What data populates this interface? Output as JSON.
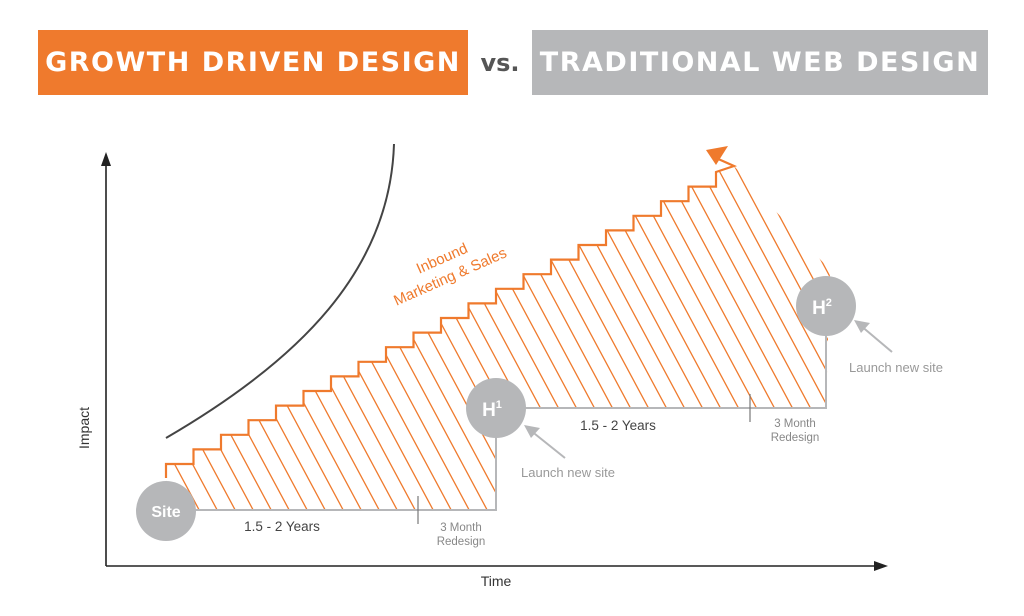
{
  "header": {
    "left_title": "GROWTH DRIVEN DESIGN",
    "vs": "vs.",
    "right_title": "TRADITIONAL WEB DESIGN"
  },
  "axes": {
    "y_label": "Impact",
    "x_label": "Time"
  },
  "curve_label": {
    "line1": "Inbound",
    "line2": "Marketing & Sales"
  },
  "nodes": {
    "site": "Site",
    "h1": "H",
    "h1_sup": "1",
    "h2": "H",
    "h2_sup": "2"
  },
  "labels": {
    "years_1": "1.5 - 2 Years",
    "redesign_1_line1": "3 Month",
    "redesign_1_line2": "Redesign",
    "years_2": "1.5 - 2 Years",
    "redesign_2_line1": "3 Month",
    "redesign_2_line2": "Redesign",
    "launch_1": "Launch new site",
    "launch_2": "Launch new site"
  },
  "colors": {
    "orange": "#ef7a2d",
    "gray": "#b6b7b9",
    "dark": "#444444"
  }
}
